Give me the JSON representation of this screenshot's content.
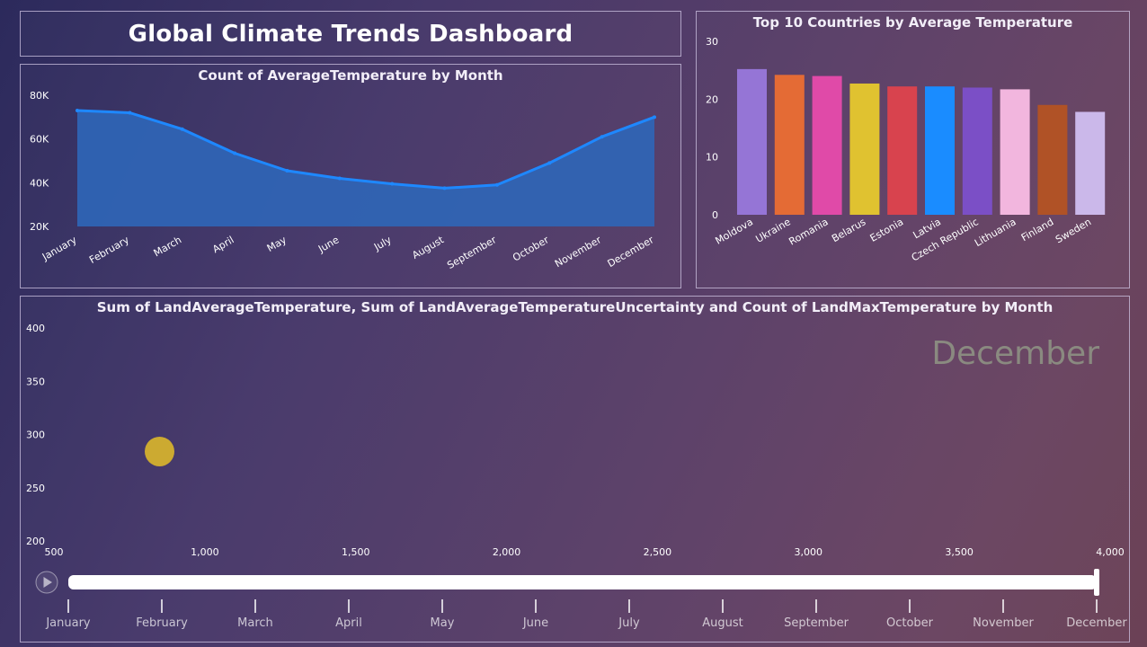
{
  "dashboard": {
    "title": "Global Climate Trends Dashboard"
  },
  "colors": {
    "line": "#1e88ff",
    "area": "#2f66b8",
    "bubble": "#d4b02e",
    "axis_text": "#ffffff",
    "watermark": "#8a8a80"
  },
  "chart_data": [
    {
      "type": "area",
      "title": "Count of AverageTemperature by Month",
      "xlabel": "",
      "ylabel": "",
      "categories": [
        "January",
        "February",
        "March",
        "April",
        "May",
        "June",
        "July",
        "August",
        "September",
        "October",
        "November",
        "December"
      ],
      "values": [
        73000,
        72000,
        64500,
        53500,
        45500,
        42000,
        39500,
        37500,
        39000,
        49000,
        61000,
        70000
      ],
      "yticks": [
        "20K",
        "40K",
        "60K",
        "80K"
      ],
      "ylim": [
        20000,
        80000
      ],
      "grid": false,
      "legend": "none"
    },
    {
      "type": "bar",
      "title": "Top 10 Countries by Average Temperature",
      "xlabel": "",
      "ylabel": "",
      "categories": [
        "Moldova",
        "Ukraine",
        "Romania",
        "Belarus",
        "Estonia",
        "Latvia",
        "Czech Republic",
        "Lithuania",
        "Finland",
        "Sweden"
      ],
      "values": [
        25.2,
        24.2,
        24.0,
        22.7,
        22.2,
        22.2,
        22.0,
        21.7,
        19.0,
        17.8
      ],
      "colors": [
        "#9575d6",
        "#e46b35",
        "#e04aa8",
        "#e0c230",
        "#d8434e",
        "#1a8cff",
        "#7b4fc6",
        "#f2b6de",
        "#b05226",
        "#cbb8ea"
      ],
      "yticks": [
        "0",
        "10",
        "20",
        "30"
      ],
      "ylim": [
        0,
        30
      ],
      "grid": false,
      "legend": "none"
    },
    {
      "type": "scatter",
      "title": "Sum of LandAverageTemperature, Sum of LandAverageTemperatureUncertainty and Count of LandMaxTemperature by Month",
      "xlabel": "",
      "ylabel": "",
      "points": [
        {
          "x": 850,
          "y": 284
        }
      ],
      "xticks": [
        "500",
        "1,000",
        "1,500",
        "2,000",
        "2,500",
        "3,000",
        "3,500",
        "4,000"
      ],
      "yticks": [
        "200",
        "250",
        "300",
        "350",
        "400"
      ],
      "xlim": [
        500,
        4000
      ],
      "ylim": [
        200,
        400
      ],
      "play_axis": {
        "current_label": "December",
        "current_index": 11,
        "months": [
          "January",
          "February",
          "March",
          "April",
          "May",
          "June",
          "July",
          "August",
          "September",
          "October",
          "November",
          "December"
        ]
      },
      "grid": false,
      "legend": "none"
    }
  ]
}
